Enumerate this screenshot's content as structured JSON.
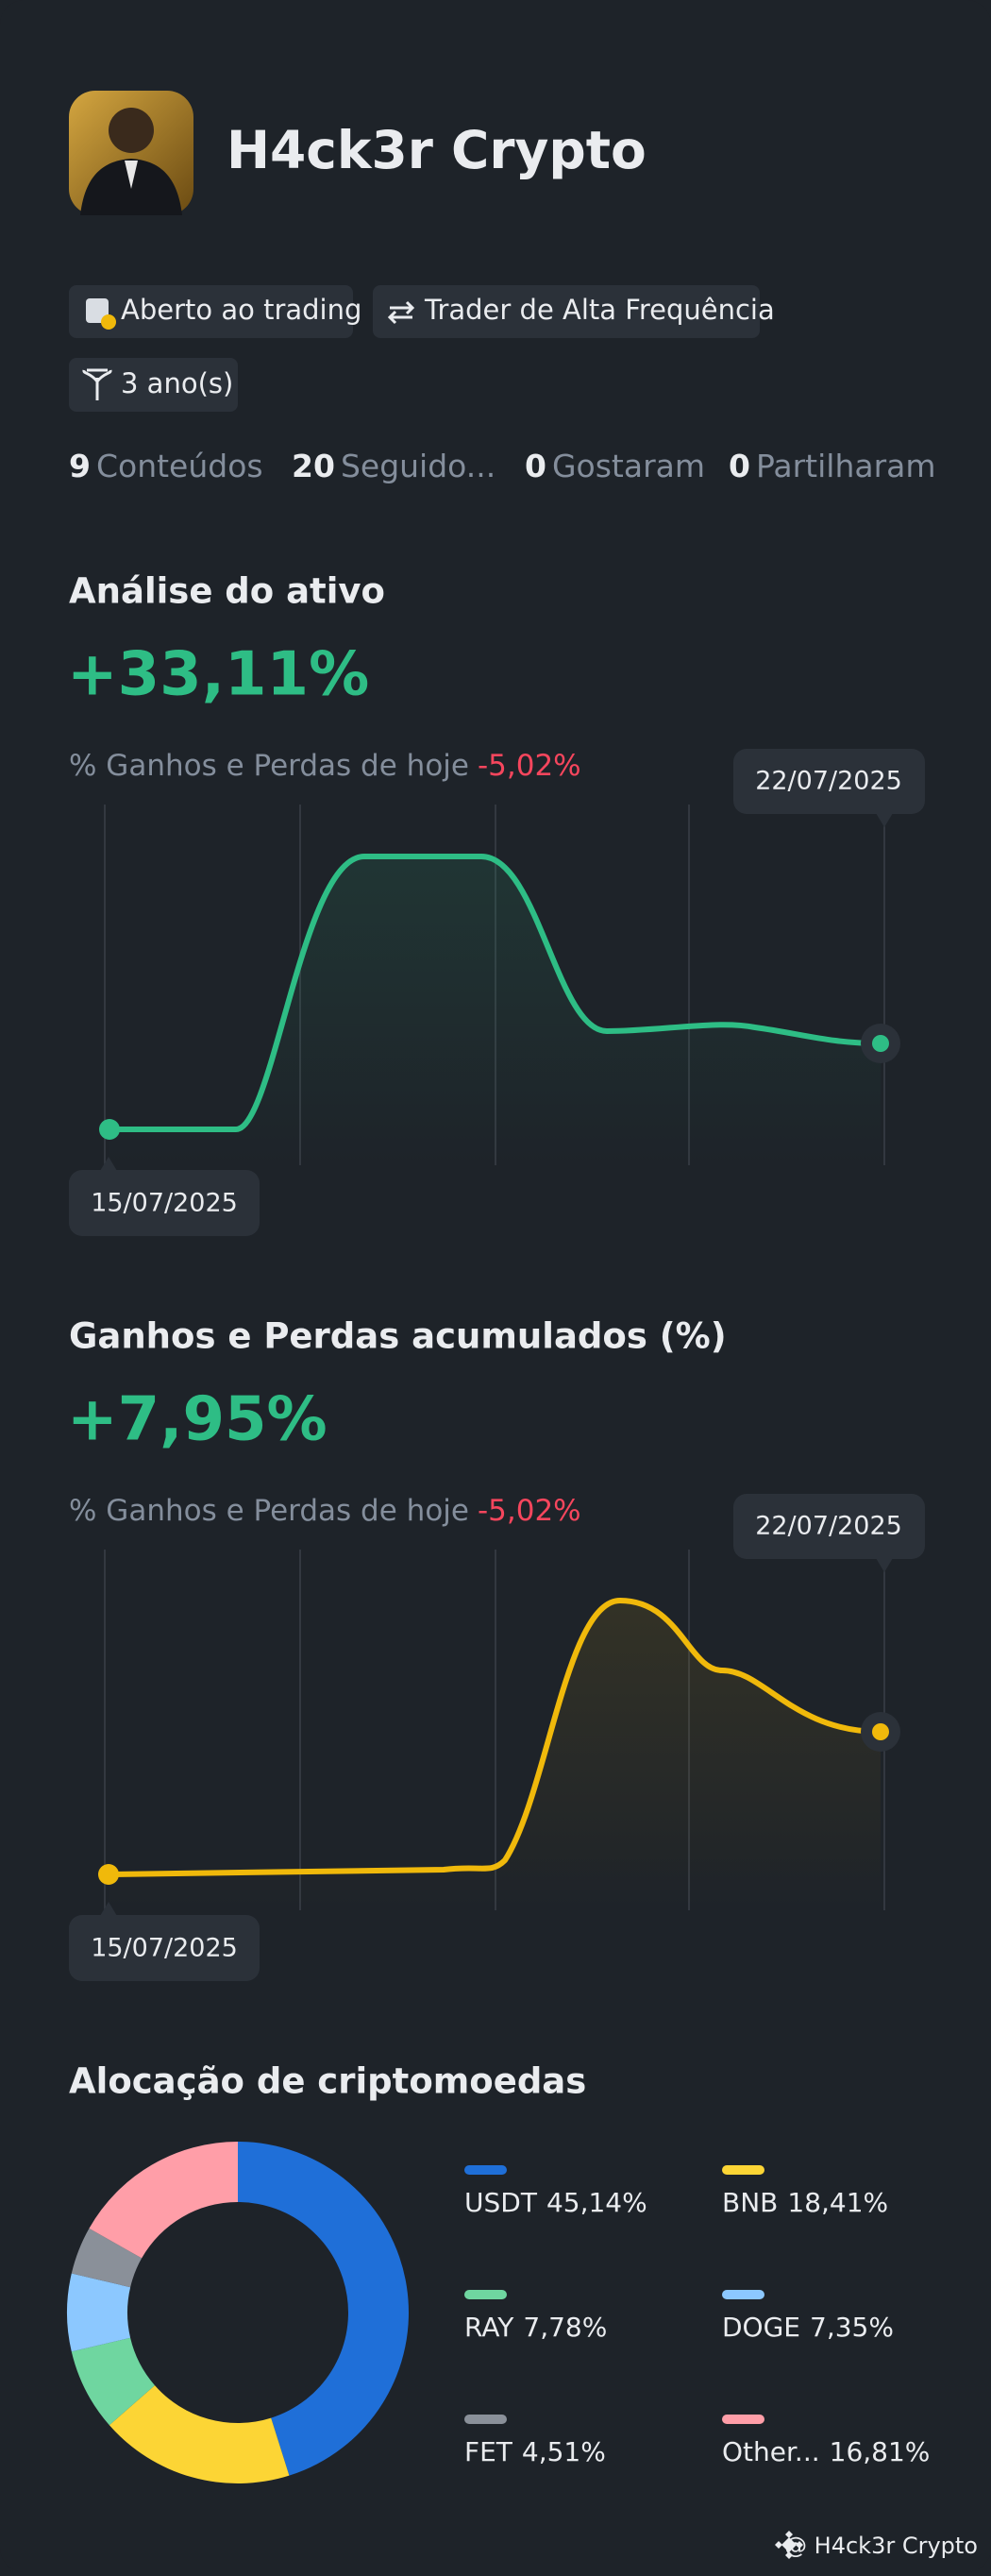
{
  "profile": {
    "name": "H4ck3r Crypto",
    "tags": [
      "Aberto ao trading",
      "Trader de Alta Frequência",
      "3 ano(s)"
    ],
    "stats": [
      {
        "count": 9,
        "label": "Conteúdos"
      },
      {
        "count": 20,
        "label": "Seguido..."
      },
      {
        "count": 0,
        "label": "Gostaram"
      },
      {
        "count": 0,
        "label": "Partilharam"
      }
    ]
  },
  "asset_analysis": {
    "title": "Análise do ativo",
    "value": "+33,11%",
    "today_label": "% Ganhos e Perdas de hoje",
    "today_value": "-5,02%",
    "start_date": "15/07/2025",
    "end_date": "22/07/2025"
  },
  "cumulative_pnl": {
    "title": "Ganhos e Perdas acumulados (%)",
    "value": "+7,95%",
    "today_label": "% Ganhos e Perdas de hoje",
    "today_value": "-5,02%",
    "start_date": "15/07/2025",
    "end_date": "22/07/2025"
  },
  "chart_data": {
    "type": "donut",
    "title": "Alocação de criptomoedas",
    "categories": [
      "USDT",
      "BNB",
      "RAY",
      "DOGE",
      "FET",
      "Other..."
    ],
    "values": [
      45.14,
      18.41,
      7.78,
      7.35,
      4.51,
      16.81
    ],
    "value_labels": [
      "45,14%",
      "18,41%",
      "7,78%",
      "7,35%",
      "4,51%",
      "16,81%"
    ],
    "colors": [
      "#1f6fd8",
      "#fcd535",
      "#6fd6a0",
      "#8cc8ff",
      "#8a9099",
      "#ff9ea8"
    ]
  },
  "footer": {
    "handle": "@ H4ck3r Crypto"
  }
}
